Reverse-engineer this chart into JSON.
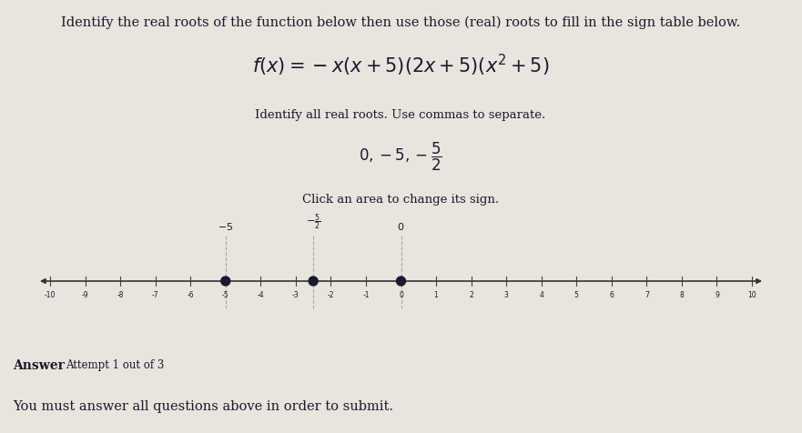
{
  "bg_color": "#e8e4de",
  "title_text": "Identify the real roots of the function below then use those (real) roots to fill in the sign table below.",
  "identify_text": "Identify all real roots. Use commas to separate.",
  "click_text": "Click an area to change its sign.",
  "answer_label": "Answer",
  "attempt_text": "Attempt 1 out of 3",
  "submit_text": "You must answer all questions above in order to submit.",
  "number_line_min": -10,
  "number_line_max": 10,
  "roots": [
    -5,
    -2.5,
    0
  ],
  "tick_color": "#444444",
  "dot_color": "#1a1a2e",
  "line_color": "#333333",
  "dashed_color": "#999999",
  "text_color": "#1a1a2e",
  "font_size_title": 10.5,
  "font_size_function": 15,
  "font_size_small": 9.5,
  "font_size_roots": 12,
  "font_size_answer_bold": 10,
  "font_size_attempt": 8.5,
  "font_size_submit": 10.5,
  "font_size_tick": 5.5,
  "font_size_root_label": 8
}
